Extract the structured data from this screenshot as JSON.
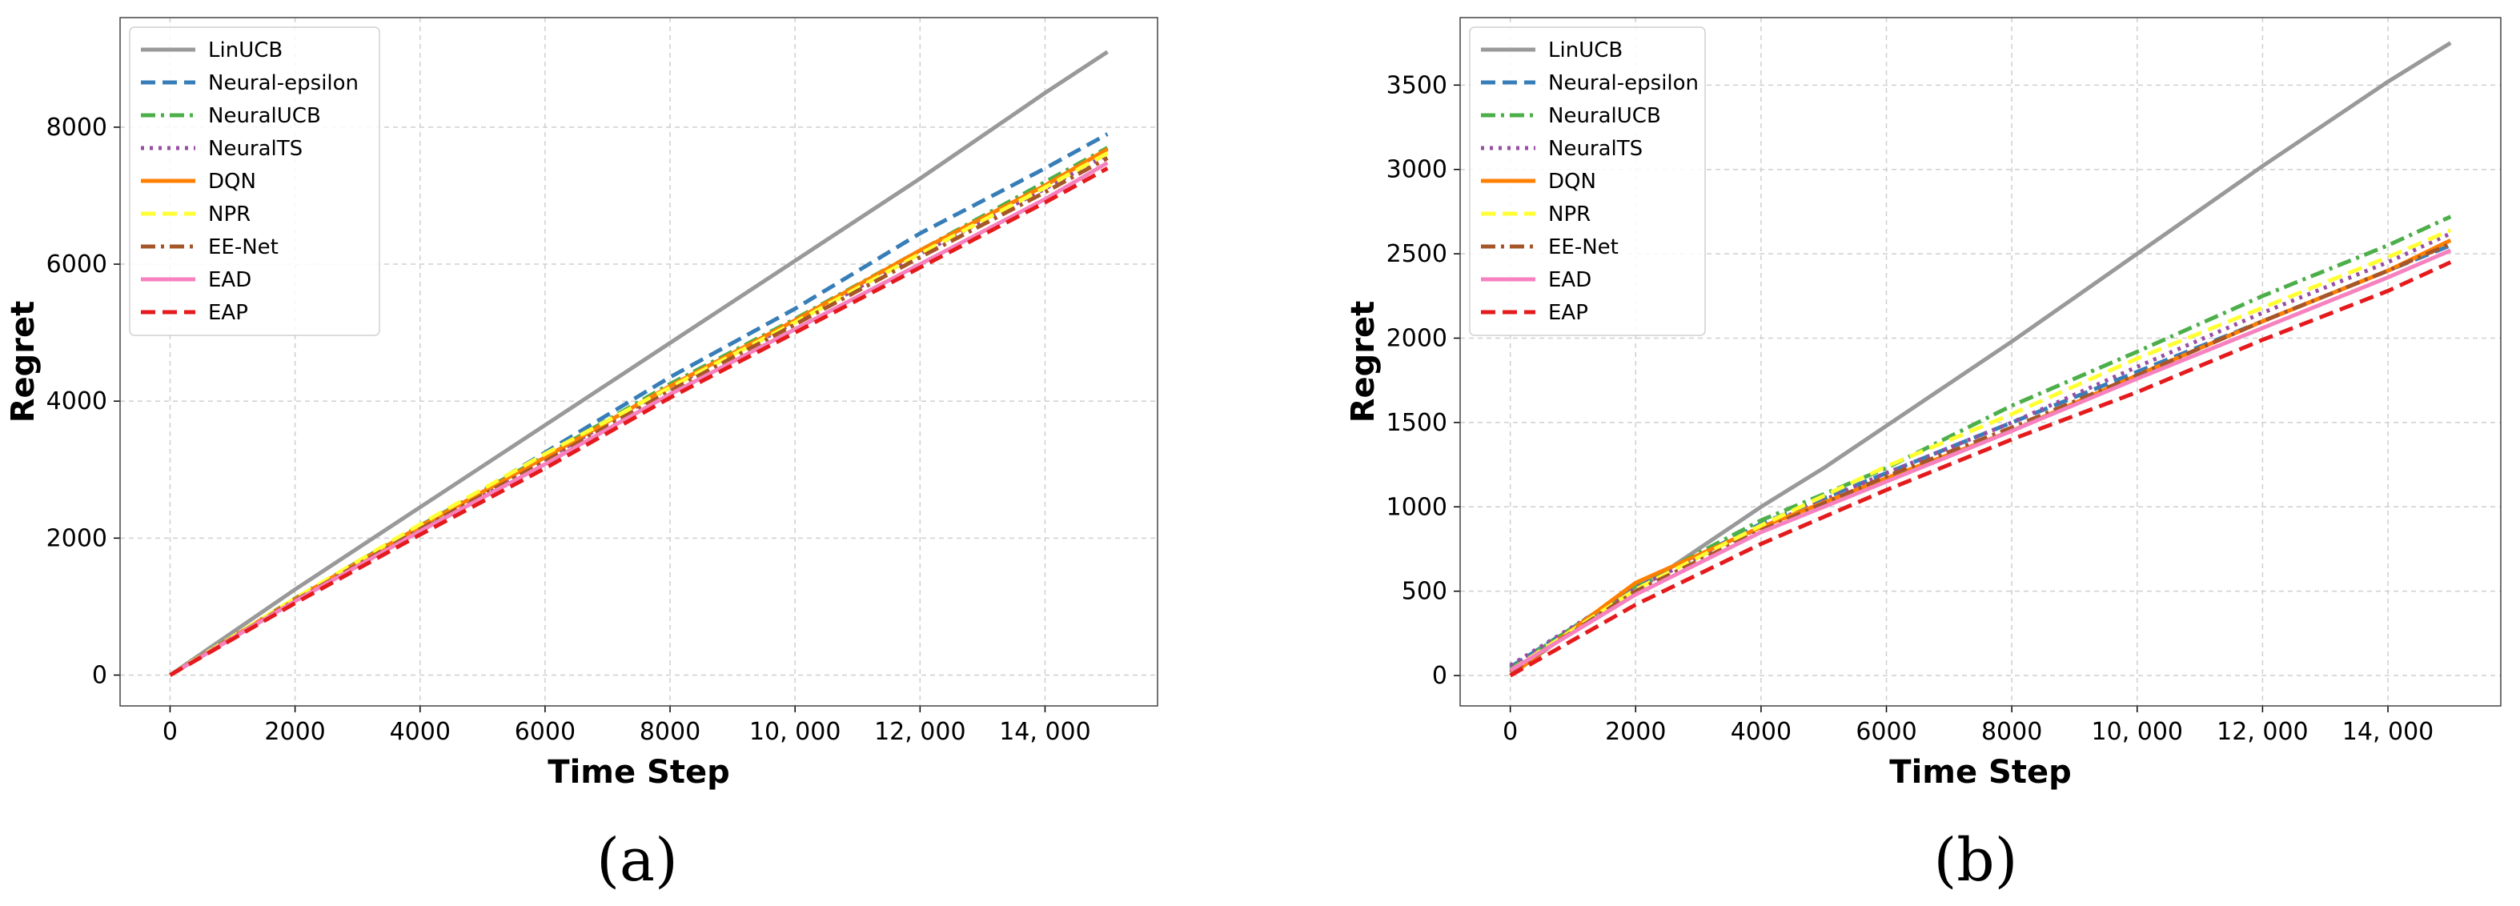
{
  "chart_data": [
    {
      "type": "line",
      "panel_label": "(a)",
      "xlabel": "Time Step",
      "ylabel": "Regret",
      "xlim": [
        -800,
        15800
      ],
      "ylim": [
        -450,
        9600
      ],
      "xticks": [
        0,
        2000,
        4000,
        6000,
        8000,
        10000,
        12000,
        14000
      ],
      "xtick_labels": [
        "0",
        "2000",
        "4000",
        "6000",
        "8000",
        "10, 000",
        "12, 000",
        "14, 000"
      ],
      "yticks": [
        0,
        2000,
        4000,
        6000,
        8000
      ],
      "ytick_labels": [
        "0",
        "2000",
        "4000",
        "6000",
        "8000"
      ],
      "grid": true,
      "legend_position": "top-left",
      "series": [
        {
          "name": "LinUCB",
          "color": "#999999",
          "dash": "solid",
          "x": [
            0,
            2000,
            4000,
            6000,
            8000,
            10000,
            12000,
            14000,
            15000
          ],
          "y": [
            0,
            1250,
            2450,
            3650,
            4850,
            6050,
            7250,
            8500,
            9100
          ]
        },
        {
          "name": "Neural-epsilon",
          "color": "#377eb8",
          "dash": "dashed",
          "x": [
            0,
            2000,
            4000,
            6000,
            8000,
            10000,
            12000,
            14000,
            15000
          ],
          "y": [
            0,
            1100,
            2150,
            3250,
            4350,
            5350,
            6450,
            7400,
            7900
          ]
        },
        {
          "name": "NeuralUCB",
          "color": "#4daf4a",
          "dash": "dashdot",
          "x": [
            0,
            2000,
            4000,
            6000,
            8000,
            10000,
            12000,
            14000,
            15000
          ],
          "y": [
            0,
            1120,
            2180,
            3200,
            4250,
            5200,
            6200,
            7200,
            7700
          ]
        },
        {
          "name": "NeuralTS",
          "color": "#984ea3",
          "dash": "dotted",
          "x": [
            0,
            2000,
            4000,
            6000,
            8000,
            10000,
            12000,
            14000,
            15000
          ],
          "y": [
            0,
            1100,
            2150,
            3150,
            4200,
            5150,
            6150,
            7100,
            7600
          ]
        },
        {
          "name": "DQN",
          "color": "#ff7f00",
          "dash": "solid",
          "x": [
            0,
            2000,
            4000,
            6000,
            8000,
            10000,
            12000,
            14000,
            15000
          ],
          "y": [
            0,
            1110,
            2170,
            3180,
            4220,
            5180,
            6200,
            7150,
            7680
          ]
        },
        {
          "name": "NPR",
          "color": "#ffff33",
          "dash": "dashed",
          "x": [
            0,
            2000,
            4000,
            6000,
            8000,
            10000,
            12000,
            14000,
            15000
          ],
          "y": [
            0,
            1120,
            2200,
            3230,
            4200,
            5150,
            6150,
            7120,
            7620
          ]
        },
        {
          "name": "EE-Net",
          "color": "#a65628",
          "dash": "dashdot",
          "x": [
            0,
            2000,
            4000,
            6000,
            8000,
            10000,
            12000,
            14000,
            15000
          ],
          "y": [
            0,
            1090,
            2130,
            3120,
            4150,
            5120,
            6100,
            7050,
            7550
          ]
        },
        {
          "name": "EAD",
          "color": "#f781bf",
          "dash": "solid",
          "x": [
            0,
            2000,
            4000,
            6000,
            8000,
            10000,
            12000,
            14000,
            15000
          ],
          "y": [
            0,
            1080,
            2100,
            3080,
            4100,
            5050,
            6000,
            6950,
            7480
          ]
        },
        {
          "name": "EAP",
          "color": "#e41a1c",
          "dash": "dashed",
          "x": [
            0,
            2000,
            4000,
            6000,
            8000,
            10000,
            12000,
            14000,
            15000
          ],
          "y": [
            0,
            1050,
            2050,
            3020,
            4050,
            5000,
            5950,
            6900,
            7400
          ]
        }
      ]
    },
    {
      "type": "line",
      "panel_label": "(b)",
      "xlabel": "Time Step",
      "ylabel": "Regret",
      "xlim": [
        -800,
        15800
      ],
      "ylim": [
        -180,
        3900
      ],
      "xticks": [
        0,
        2000,
        4000,
        6000,
        8000,
        10000,
        12000,
        14000
      ],
      "xtick_labels": [
        "0",
        "2000",
        "4000",
        "6000",
        "8000",
        "10, 000",
        "12, 000",
        "14, 000"
      ],
      "yticks": [
        0,
        500,
        1000,
        1500,
        2000,
        2500,
        3000,
        3500
      ],
      "ytick_labels": [
        "0",
        "500",
        "1000",
        "1500",
        "2000",
        "2500",
        "3000",
        "3500"
      ],
      "grid": true,
      "legend_position": "top-left",
      "series": [
        {
          "name": "LinUCB",
          "color": "#999999",
          "dash": "solid",
          "x": [
            0,
            1000,
            2000,
            3000,
            4000,
            5000,
            6000,
            7000,
            8000,
            9000,
            10000,
            11000,
            12000,
            13000,
            14000,
            15000
          ],
          "y": [
            0,
            270,
            500,
            750,
            1000,
            1230,
            1480,
            1730,
            1980,
            2240,
            2500,
            2760,
            3020,
            3270,
            3520,
            3750
          ]
        },
        {
          "name": "Neural-epsilon",
          "color": "#377eb8",
          "dash": "dashed",
          "x": [
            0,
            2000,
            4000,
            6000,
            8000,
            10000,
            12000,
            14000,
            15000
          ],
          "y": [
            50,
            520,
            900,
            1200,
            1500,
            1800,
            2100,
            2400,
            2550
          ]
        },
        {
          "name": "NeuralUCB",
          "color": "#4daf4a",
          "dash": "dashdot",
          "x": [
            0,
            2000,
            4000,
            6000,
            8000,
            10000,
            12000,
            14000,
            15000
          ],
          "y": [
            40,
            530,
            920,
            1230,
            1600,
            1920,
            2250,
            2550,
            2720
          ]
        },
        {
          "name": "NeuralTS",
          "color": "#984ea3",
          "dash": "dotted",
          "x": [
            0,
            2000,
            4000,
            6000,
            8000,
            10000,
            12000,
            14000,
            15000
          ],
          "y": [
            60,
            520,
            880,
            1200,
            1500,
            1830,
            2150,
            2450,
            2620
          ]
        },
        {
          "name": "DQN",
          "color": "#ff7f00",
          "dash": "solid",
          "x": [
            0,
            2000,
            4000,
            6000,
            8000,
            10000,
            12000,
            14000,
            15000
          ],
          "y": [
            0,
            550,
            880,
            1170,
            1450,
            1780,
            2100,
            2400,
            2580
          ]
        },
        {
          "name": "NPR",
          "color": "#ffff33",
          "dash": "dashed",
          "x": [
            0,
            2000,
            4000,
            6000,
            8000,
            10000,
            12000,
            14000,
            15000
          ],
          "y": [
            30,
            510,
            890,
            1240,
            1550,
            1880,
            2180,
            2480,
            2640
          ]
        },
        {
          "name": "EE-Net",
          "color": "#a65628",
          "dash": "dashdot",
          "x": [
            0,
            2000,
            4000,
            6000,
            8000,
            10000,
            12000,
            14000,
            15000
          ],
          "y": [
            20,
            500,
            860,
            1180,
            1470,
            1780,
            2100,
            2400,
            2560
          ]
        },
        {
          "name": "EAD",
          "color": "#f781bf",
          "dash": "solid",
          "x": [
            0,
            2000,
            4000,
            6000,
            8000,
            10000,
            12000,
            14000,
            15000
          ],
          "y": [
            30,
            480,
            850,
            1150,
            1450,
            1760,
            2060,
            2360,
            2520
          ]
        },
        {
          "name": "EAP",
          "color": "#e41a1c",
          "dash": "dashed",
          "x": [
            0,
            2000,
            4000,
            6000,
            8000,
            10000,
            12000,
            14000,
            15000
          ],
          "y": [
            0,
            420,
            780,
            1100,
            1400,
            1680,
            1990,
            2280,
            2450
          ]
        }
      ]
    }
  ]
}
